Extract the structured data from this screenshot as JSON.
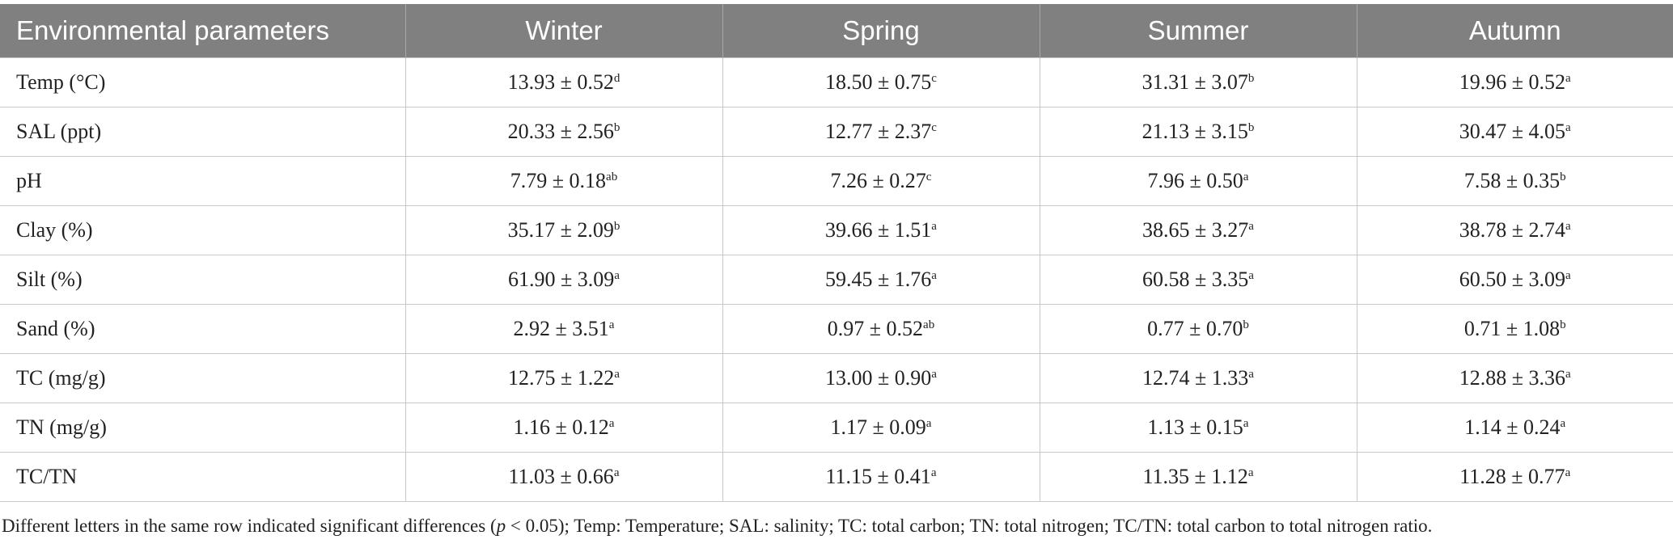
{
  "table": {
    "header": [
      "Environmental parameters",
      "Winter",
      "Spring",
      "Summer",
      "Autumn"
    ],
    "rows": [
      [
        "Temp (°C)",
        {
          "value": "13.93 ± 0.52",
          "sup": "d"
        },
        {
          "value": "18.50 ± 0.75",
          "sup": "c"
        },
        {
          "value": "31.31 ± 3.07",
          "sup": "b"
        },
        {
          "value": "19.96 ± 0.52",
          "sup": "a"
        }
      ],
      [
        "SAL (ppt)",
        {
          "value": "20.33 ± 2.56",
          "sup": "b"
        },
        {
          "value": "12.77 ± 2.37",
          "sup": "c"
        },
        {
          "value": "21.13 ± 3.15",
          "sup": "b"
        },
        {
          "value": "30.47 ± 4.05",
          "sup": "a"
        }
      ],
      [
        "pH",
        {
          "value": "7.79 ± 0.18",
          "sup": "ab"
        },
        {
          "value": "7.26 ± 0.27",
          "sup": "c"
        },
        {
          "value": "7.96 ± 0.50",
          "sup": "a"
        },
        {
          "value": "7.58 ± 0.35",
          "sup": "b"
        }
      ],
      [
        "Clay (%)",
        {
          "value": "35.17 ± 2.09",
          "sup": "b"
        },
        {
          "value": "39.66 ± 1.51",
          "sup": "a"
        },
        {
          "value": "38.65 ± 3.27",
          "sup": "a"
        },
        {
          "value": "38.78 ± 2.74",
          "sup": "a"
        }
      ],
      [
        "Silt (%)",
        {
          "value": "61.90 ± 3.09",
          "sup": "a"
        },
        {
          "value": "59.45 ± 1.76",
          "sup": "a"
        },
        {
          "value": "60.58 ± 3.35",
          "sup": "a"
        },
        {
          "value": "60.50 ± 3.09",
          "sup": "a"
        }
      ],
      [
        "Sand (%)",
        {
          "value": "2.92 ± 3.51",
          "sup": "a"
        },
        {
          "value": "0.97 ± 0.52",
          "sup": "ab"
        },
        {
          "value": "0.77 ± 0.70",
          "sup": "b"
        },
        {
          "value": "0.71 ± 1.08",
          "sup": "b"
        }
      ],
      [
        "TC (mg/g)",
        {
          "value": "12.75 ± 1.22",
          "sup": "a"
        },
        {
          "value": "13.00 ± 0.90",
          "sup": "a"
        },
        {
          "value": "12.74 ± 1.33",
          "sup": "a"
        },
        {
          "value": "12.88 ± 3.36",
          "sup": "a"
        }
      ],
      [
        "TN (mg/g)",
        {
          "value": "1.16 ± 0.12",
          "sup": "a"
        },
        {
          "value": "1.17 ± 0.09",
          "sup": "a"
        },
        {
          "value": "1.13 ± 0.15",
          "sup": "a"
        },
        {
          "value": "1.14 ± 0.24",
          "sup": "a"
        }
      ],
      [
        "TC/TN",
        {
          "value": "11.03 ± 0.66",
          "sup": "a"
        },
        {
          "value": "11.15 ± 0.41",
          "sup": "a"
        },
        {
          "value": "11.35 ± 1.12",
          "sup": "a"
        },
        {
          "value": "11.28 ± 0.77",
          "sup": "a"
        }
      ]
    ]
  },
  "footnote": [
    "Different letters in the same row indicated significant differences (",
    "p",
    " < 0.05); Temp: Temperature; SAL: salinity; TC: total carbon; TN: total nitrogen; TC/TN: total carbon to total nitrogen ratio."
  ]
}
